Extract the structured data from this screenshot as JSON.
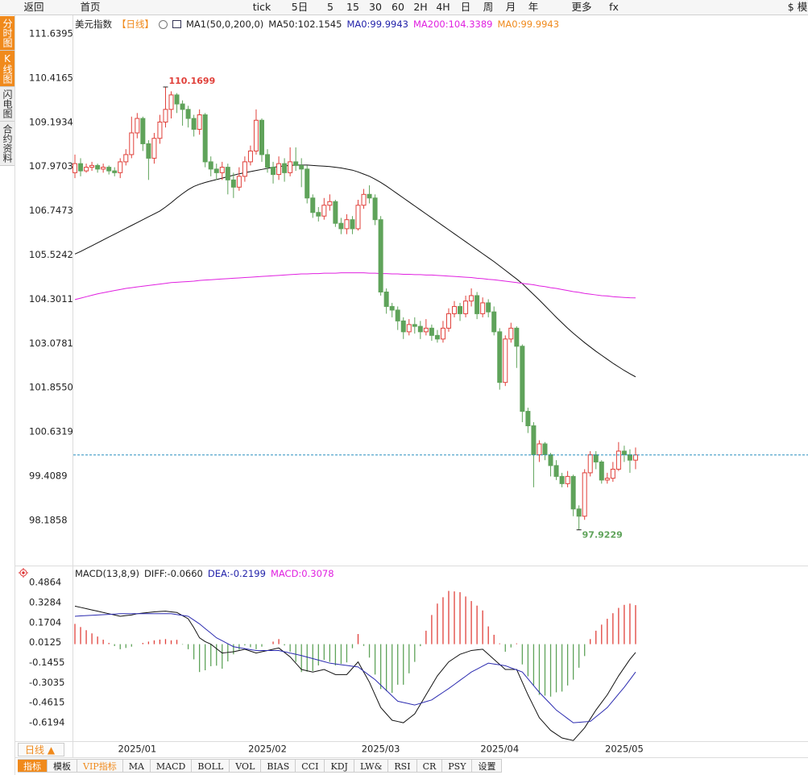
{
  "toolbar": [
    "返回",
    "首页",
    "tick",
    "5日",
    "5",
    "15",
    "30",
    "60",
    "2H",
    "4H",
    "日",
    "周",
    "月",
    "年",
    "更多",
    "fx",
    "$ 模"
  ],
  "side_tabs": [
    "分时图",
    "K线图",
    "闪电图",
    "合约资料"
  ],
  "chart_data": [
    {
      "type": "candlestick",
      "title": "美元指数",
      "period": "【日线】",
      "legend": [
        {
          "text": "MA1(50,0,200,0)",
          "color": "#222222"
        },
        {
          "text": "MA50:102.1545",
          "color": "#222222"
        },
        {
          "text": "MA0:99.9943",
          "color": "#2222aa"
        },
        {
          "text": "MA200:104.3389",
          "color": "#e020e0"
        },
        {
          "text": "MA0:99.9943",
          "color": "#f08a1c"
        }
      ],
      "up_color": "#e0403a",
      "down_color": "#5fa35a",
      "period_color": "#f08a1c",
      "last_line_color": "#2a8fbf",
      "categories": [
        null,
        null,
        null,
        null,
        null,
        null,
        null,
        null,
        null,
        null,
        null,
        "2025/01",
        null,
        null,
        null,
        null,
        null,
        null,
        null,
        null,
        null,
        null,
        null,
        null,
        null,
        null,
        null,
        null,
        null,
        null,
        null,
        null,
        null,
        null,
        "2025/02",
        null,
        null,
        null,
        null,
        null,
        null,
        null,
        null,
        null,
        null,
        null,
        null,
        null,
        null,
        null,
        null,
        null,
        null,
        null,
        "2025/03",
        null,
        null,
        null,
        null,
        null,
        null,
        null,
        null,
        null,
        null,
        null,
        null,
        null,
        null,
        null,
        null,
        null,
        null,
        null,
        null,
        "2025/04",
        null,
        null,
        null,
        null,
        null,
        null,
        null,
        null,
        null,
        null,
        null,
        null,
        null,
        null,
        null,
        null,
        null,
        null,
        null,
        null,
        null,
        "2025/05",
        null,
        null
      ],
      "open": [
        107.8,
        108.05,
        107.85,
        107.95,
        108.0,
        107.9,
        107.95,
        107.85,
        107.8,
        108.1,
        108.3,
        108.9,
        109.3,
        108.6,
        108.2,
        108.75,
        109.2,
        109.55,
        109.95,
        109.7,
        109.55,
        109.3,
        109.0,
        109.4,
        108.1,
        107.9,
        107.8,
        107.95,
        107.6,
        107.4,
        107.7,
        108.1,
        108.4,
        109.25,
        108.3,
        107.95,
        107.75,
        108.05,
        107.8,
        108.1,
        108.0,
        107.9,
        107.1,
        106.7,
        106.6,
        106.9,
        107.0,
        106.4,
        106.25,
        106.5,
        106.25,
        106.9,
        107.2,
        107.1,
        106.5,
        104.5,
        104.1,
        104.0,
        103.7,
        103.4,
        103.6,
        103.55,
        103.4,
        103.5,
        103.3,
        103.2,
        103.5,
        103.9,
        104.1,
        103.9,
        104.25,
        104.4,
        103.9,
        104.2,
        103.95,
        103.4,
        102.0,
        103.2,
        103.5,
        103.0,
        101.2,
        100.8,
        100.0,
        100.3,
        100.0,
        99.7,
        99.4,
        99.2,
        99.4,
        98.5,
        98.3,
        99.5,
        100.0,
        99.8,
        99.3,
        99.35,
        99.6,
        100.1,
        100.0,
        99.85
      ],
      "high": [
        108.3,
        108.2,
        108.05,
        108.1,
        108.05,
        108.05,
        108.0,
        107.95,
        108.2,
        108.45,
        109.35,
        109.45,
        109.35,
        108.7,
        108.9,
        109.4,
        110.1699,
        110.05,
        110.0,
        109.8,
        109.65,
        109.4,
        109.55,
        109.45,
        108.25,
        108.05,
        108.1,
        108.05,
        107.8,
        107.95,
        108.25,
        108.55,
        109.55,
        109.3,
        108.45,
        108.1,
        108.25,
        108.2,
        108.5,
        108.5,
        108.2,
        108.0,
        107.2,
        106.85,
        107.1,
        107.2,
        107.05,
        106.55,
        106.65,
        106.6,
        107.05,
        107.35,
        107.45,
        107.2,
        106.6,
        104.6,
        104.2,
        104.1,
        103.8,
        103.75,
        103.8,
        103.7,
        103.75,
        103.6,
        103.45,
        103.7,
        104.05,
        104.25,
        104.2,
        104.4,
        104.6,
        104.5,
        104.35,
        104.3,
        104.1,
        103.5,
        103.3,
        103.65,
        103.55,
        103.05,
        101.3,
        100.9,
        100.4,
        100.35,
        100.05,
        99.85,
        99.5,
        99.55,
        99.45,
        98.6,
        99.6,
        100.1,
        100.1,
        99.85,
        99.5,
        99.8,
        100.35,
        100.25,
        100.15,
        100.2
      ],
      "low": [
        107.65,
        107.7,
        107.8,
        107.85,
        107.8,
        107.8,
        107.75,
        107.7,
        107.65,
        108.0,
        108.2,
        108.75,
        108.4,
        107.6,
        108.05,
        108.6,
        109.05,
        109.3,
        109.45,
        109.1,
        109.05,
        108.8,
        108.85,
        107.95,
        107.7,
        107.6,
        107.6,
        107.2,
        107.1,
        107.3,
        107.55,
        108.0,
        108.3,
        108.1,
        107.8,
        107.5,
        107.6,
        107.55,
        107.7,
        107.85,
        107.4,
        106.95,
        106.55,
        106.45,
        106.5,
        106.75,
        106.3,
        106.1,
        106.1,
        106.1,
        106.2,
        106.8,
        106.95,
        106.35,
        104.4,
        103.9,
        103.8,
        103.45,
        103.2,
        103.3,
        103.35,
        103.2,
        103.3,
        103.15,
        103.1,
        103.1,
        103.4,
        103.8,
        103.7,
        103.8,
        104.1,
        103.75,
        103.8,
        103.8,
        103.3,
        101.8,
        101.9,
        103.1,
        102.4,
        100.9,
        100.6,
        99.1,
        99.8,
        99.85,
        99.4,
        99.3,
        99.1,
        99.1,
        98.3,
        97.9229,
        98.2,
        99.4,
        99.6,
        99.2,
        99.2,
        99.25,
        99.55,
        99.8,
        99.5,
        99.6
      ],
      "close": [
        108.05,
        107.85,
        107.95,
        108.0,
        107.9,
        107.95,
        107.85,
        107.8,
        108.1,
        108.3,
        108.9,
        109.3,
        108.6,
        108.2,
        108.75,
        109.2,
        109.55,
        109.95,
        109.7,
        109.55,
        109.3,
        109.0,
        109.4,
        108.1,
        107.9,
        107.8,
        107.95,
        107.6,
        107.4,
        107.7,
        108.1,
        108.4,
        109.25,
        108.3,
        107.95,
        107.75,
        108.05,
        107.8,
        108.1,
        108.0,
        107.9,
        107.1,
        106.7,
        106.6,
        106.9,
        107.0,
        106.4,
        106.25,
        106.5,
        106.25,
        106.9,
        107.2,
        107.1,
        106.5,
        104.5,
        104.1,
        104.0,
        103.7,
        103.4,
        103.6,
        103.55,
        103.4,
        103.5,
        103.3,
        103.2,
        103.5,
        103.9,
        104.1,
        103.9,
        104.25,
        104.4,
        103.9,
        104.2,
        103.95,
        103.4,
        102.0,
        103.2,
        103.5,
        103.0,
        101.2,
        100.8,
        100.0,
        100.3,
        100.0,
        99.7,
        99.4,
        99.2,
        99.4,
        98.5,
        98.3,
        99.5,
        100.0,
        99.8,
        99.3,
        99.35,
        99.6,
        100.1,
        100.0,
        99.85,
        99.9943
      ],
      "ma_lines": [
        {
          "color": "#111111",
          "values": [
            105.55,
            105.62,
            105.7,
            105.78,
            105.86,
            105.94,
            106.02,
            106.1,
            106.18,
            106.26,
            106.34,
            106.42,
            106.5,
            106.58,
            106.66,
            106.74,
            106.85,
            106.97,
            107.1,
            107.22,
            107.33,
            107.42,
            107.48,
            107.53,
            107.57,
            107.61,
            107.65,
            107.69,
            107.73,
            107.77,
            107.8,
            107.83,
            107.86,
            107.89,
            107.92,
            107.95,
            107.97,
            107.99,
            108.0,
            108.01,
            108.01,
            108.01,
            108.0,
            107.99,
            107.98,
            107.97,
            107.95,
            107.93,
            107.9,
            107.87,
            107.82,
            107.76,
            107.7,
            107.62,
            107.53,
            107.43,
            107.32,
            107.21,
            107.1,
            106.99,
            106.88,
            106.77,
            106.66,
            106.55,
            106.44,
            106.33,
            106.22,
            106.11,
            106.0,
            105.89,
            105.78,
            105.67,
            105.56,
            105.45,
            105.34,
            105.22,
            105.1,
            104.98,
            104.86,
            104.73,
            104.58,
            104.43,
            104.28,
            104.12,
            103.96,
            103.8,
            103.65,
            103.5,
            103.36,
            103.23,
            103.1,
            102.98,
            102.86,
            102.75,
            102.64,
            102.53,
            102.43,
            102.33,
            102.24,
            102.1545
          ]
        },
        {
          "color": "#e020e0",
          "values": [
            104.29,
            104.33,
            104.37,
            104.41,
            104.45,
            104.48,
            104.51,
            104.54,
            104.57,
            104.6,
            104.62,
            104.64,
            104.66,
            104.68,
            104.7,
            104.72,
            104.74,
            104.76,
            104.77,
            104.78,
            104.79,
            104.8,
            104.82,
            104.83,
            104.84,
            104.85,
            104.86,
            104.87,
            104.88,
            104.89,
            104.9,
            104.91,
            104.92,
            104.93,
            104.94,
            104.95,
            104.96,
            104.97,
            104.98,
            104.99,
            105.0,
            105.0,
            105.01,
            105.01,
            105.02,
            105.02,
            105.02,
            105.03,
            105.03,
            105.03,
            105.03,
            105.03,
            105.02,
            105.02,
            105.01,
            105.01,
            105.0,
            105.0,
            104.99,
            104.99,
            104.98,
            104.98,
            104.97,
            104.97,
            104.96,
            104.95,
            104.94,
            104.93,
            104.92,
            104.91,
            104.9,
            104.88,
            104.87,
            104.85,
            104.84,
            104.82,
            104.8,
            104.78,
            104.76,
            104.74,
            104.72,
            104.7,
            104.67,
            104.65,
            104.62,
            104.6,
            104.57,
            104.54,
            104.51,
            104.49,
            104.46,
            104.44,
            104.42,
            104.4,
            104.39,
            104.37,
            104.36,
            104.35,
            104.34,
            104.3389
          ]
        }
      ],
      "ylim": [
        96.98,
        112.13
      ],
      "yticks": [
        111.6395,
        110.4165,
        109.1934,
        107.9703,
        106.7473,
        105.5242,
        104.3011,
        103.0781,
        {
          "value": 101.855,
          "label": "101.8550"
        },
        100.6319,
        99.4089,
        98.1858
      ],
      "grid": false
    },
    {
      "type": "macd",
      "legend": [
        {
          "text": "MACD(13,8,9)",
          "color": "#222222"
        },
        {
          "text": "DIFF:-0.0660",
          "color": "#222222"
        },
        {
          "text": "DEA:-0.2199",
          "color": "#2222aa"
        },
        {
          "text": "MACD:0.3078",
          "color": "#e020e0"
        }
      ],
      "diff_color": "#111111",
      "dea_color": "#2b2bb0",
      "up_color": "#e0403a",
      "down_color": "#5fa35a",
      "diff": [
        0.3,
        0.29,
        0.28,
        0.27,
        0.26,
        0.25,
        0.24,
        0.23,
        0.22,
        0.225,
        0.23,
        0.24,
        0.245,
        0.25,
        0.255,
        0.258,
        0.26,
        0.255,
        0.25,
        0.225,
        0.2,
        0.13,
        0.05,
        0.02,
        0.0,
        -0.035,
        -0.07,
        -0.065,
        -0.06,
        -0.05,
        -0.04,
        -0.055,
        -0.07,
        -0.06,
        -0.05,
        -0.04,
        -0.03,
        -0.065,
        -0.1,
        -0.15,
        -0.2,
        -0.21,
        -0.22,
        -0.21,
        -0.2,
        -0.22,
        -0.24,
        -0.24,
        -0.24,
        -0.19,
        -0.14,
        -0.22,
        -0.3,
        -0.4,
        -0.5,
        -0.55,
        -0.6,
        -0.61,
        -0.62,
        -0.585,
        -0.55,
        -0.475,
        -0.4,
        -0.325,
        -0.25,
        -0.195,
        -0.14,
        -0.11,
        -0.08,
        -0.065,
        -0.05,
        -0.045,
        -0.04,
        -0.08,
        -0.12,
        -0.16,
        -0.2,
        -0.2,
        -0.2,
        -0.3,
        -0.4,
        -0.49,
        -0.58,
        -0.63,
        -0.68,
        -0.71,
        -0.74,
        -0.75,
        -0.76,
        -0.71,
        -0.66,
        -0.59,
        -0.52,
        -0.46,
        -0.4,
        -0.325,
        -0.25,
        -0.185,
        -0.12,
        -0.066
      ],
      "dea": [
        0.22,
        0.2225,
        0.225,
        0.2275,
        0.23,
        0.2325,
        0.235,
        0.2375,
        0.24,
        0.24,
        0.24,
        0.24,
        0.24,
        0.24,
        0.24,
        0.24,
        0.24,
        0.24,
        0.233,
        0.227,
        0.22,
        0.19,
        0.16,
        0.123,
        0.087,
        0.05,
        0.027,
        0.003,
        -0.02,
        -0.028,
        -0.035,
        -0.043,
        -0.05,
        -0.05,
        -0.05,
        -0.05,
        -0.05,
        -0.06,
        -0.07,
        -0.08,
        -0.09,
        -0.102,
        -0.114,
        -0.126,
        -0.138,
        -0.15,
        -0.156,
        -0.162,
        -0.168,
        -0.174,
        -0.18,
        -0.213,
        -0.247,
        -0.28,
        -0.323,
        -0.365,
        -0.408,
        -0.45,
        -0.46,
        -0.47,
        -0.48,
        -0.467,
        -0.453,
        -0.44,
        -0.41,
        -0.38,
        -0.35,
        -0.318,
        -0.285,
        -0.253,
        -0.22,
        -0.197,
        -0.173,
        -0.15,
        -0.157,
        -0.163,
        -0.17,
        -0.187,
        -0.203,
        -0.22,
        -0.273,
        -0.327,
        -0.38,
        -0.427,
        -0.473,
        -0.52,
        -0.553,
        -0.587,
        -0.62,
        -0.617,
        -0.613,
        -0.61,
        -0.573,
        -0.537,
        -0.5,
        -0.447,
        -0.393,
        -0.34,
        -0.28,
        -0.2199
      ],
      "macd": [
        0.16,
        0.135,
        0.11,
        0.085,
        0.06,
        0.035,
        0.01,
        -0.015,
        -0.04,
        -0.03,
        -0.02,
        0,
        0.01,
        0.02,
        0.03,
        0.036,
        0.04,
        0.03,
        0.034,
        -0.004,
        -0.04,
        -0.12,
        -0.22,
        -0.206,
        -0.174,
        -0.17,
        -0.194,
        -0.136,
        -0.08,
        -0.044,
        -0.01,
        -0.024,
        -0.04,
        -0.02,
        0,
        0.02,
        0.04,
        -0.01,
        -0.06,
        -0.14,
        -0.22,
        -0.216,
        -0.212,
        -0.168,
        -0.124,
        -0.14,
        -0.168,
        -0.156,
        -0.144,
        -0.032,
        0.08,
        -0.014,
        -0.106,
        -0.24,
        -0.354,
        -0.37,
        -0.384,
        -0.32,
        -0.32,
        -0.23,
        -0.14,
        -0.016,
        0.106,
        0.23,
        0.32,
        0.37,
        0.42,
        0.416,
        0.41,
        0.376,
        0.34,
        0.304,
        0.266,
        0.14,
        0.074,
        0.006,
        -0.06,
        -0.026,
        0.006,
        -0.16,
        -0.254,
        -0.326,
        -0.4,
        -0.406,
        -0.414,
        -0.38,
        -0.374,
        -0.326,
        -0.28,
        -0.186,
        -0.094,
        0.04,
        0.106,
        0.154,
        0.2,
        0.244,
        0.286,
        0.31,
        0.32,
        0.3078
      ],
      "ylim": [
        -0.797,
        0.601
      ],
      "yticks": [
        0.4864,
        0.3284,
        0.1704,
        0.0125,
        -0.1455,
        -0.3035,
        -0.4615,
        -0.6194
      ],
      "grid": false
    }
  ],
  "period_label": "日线 ▲",
  "bottom_tabs": [
    "指标",
    "模板",
    "VIP指标",
    "MA",
    "MACD",
    "BOLL",
    "VOL",
    "BIAS",
    "CCI",
    "KDJ",
    "LW&",
    "RSI",
    "CR",
    "PSY",
    "设置"
  ]
}
